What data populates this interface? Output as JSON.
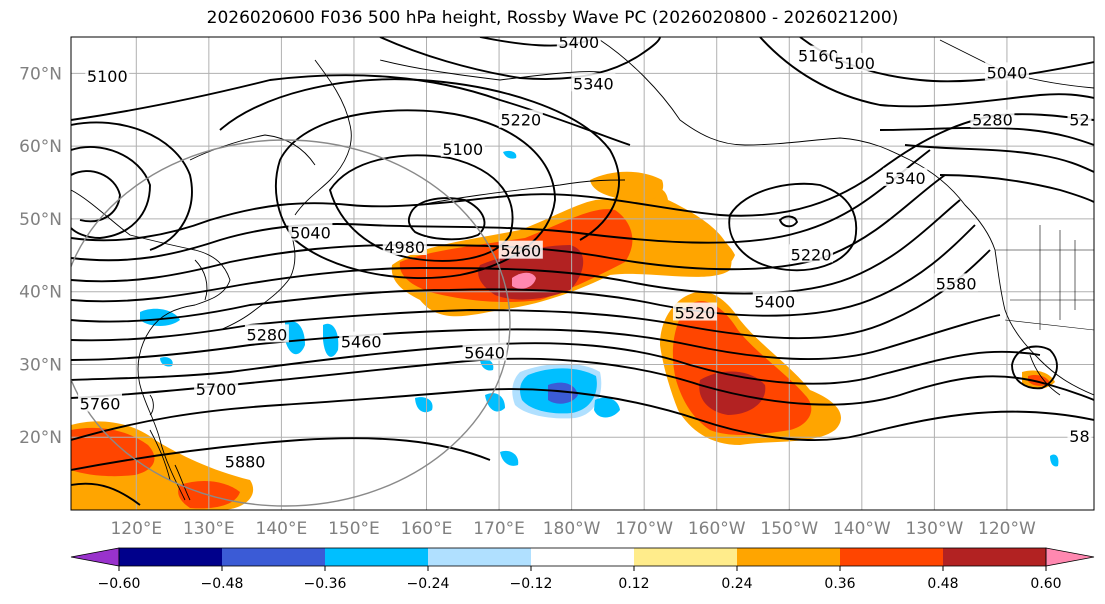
{
  "title": "2026020600 F036 500 hPa height, Rossby Wave PC (2026020800 - 2026021200)",
  "map": {
    "projection": "plate-carree",
    "lon_range": [
      111,
      252
    ],
    "lat_range": [
      10,
      75
    ],
    "lat_ticks": [
      {
        "lat": 70,
        "label": "70°N"
      },
      {
        "lat": 60,
        "label": "60°N"
      },
      {
        "lat": 50,
        "label": "50°N"
      },
      {
        "lat": 40,
        "label": "40°N"
      },
      {
        "lat": 30,
        "label": "30°N"
      },
      {
        "lat": 20,
        "label": "20°N"
      }
    ],
    "lon_ticks": [
      {
        "lon": 120,
        "label": "120°E"
      },
      {
        "lon": 130,
        "label": "130°E"
      },
      {
        "lon": 140,
        "label": "140°E"
      },
      {
        "lon": 150,
        "label": "150°E"
      },
      {
        "lon": 160,
        "label": "160°E"
      },
      {
        "lon": 170,
        "label": "170°E"
      },
      {
        "lon": 180,
        "label": "180°W"
      },
      {
        "lon": 190,
        "label": "170°W"
      },
      {
        "lon": 200,
        "label": "160°W"
      },
      {
        "lon": 210,
        "label": "150°W"
      },
      {
        "lon": 220,
        "label": "140°W"
      },
      {
        "lon": 230,
        "label": "130°W"
      },
      {
        "lon": 240,
        "label": "120°W"
      }
    ],
    "contour_labels": [
      {
        "text": "5400",
        "lon": 181,
        "lat": 74.2
      },
      {
        "text": "5340",
        "lon": 183,
        "lat": 68.5
      },
      {
        "text": "5220",
        "lon": 173,
        "lat": 63.5
      },
      {
        "text": "5100",
        "lon": 116,
        "lat": 69.5
      },
      {
        "text": "5100",
        "lon": 165,
        "lat": 59.5
      },
      {
        "text": "5160",
        "lon": 214,
        "lat": 72.3
      },
      {
        "text": "5100",
        "lon": 219,
        "lat": 71.3
      },
      {
        "text": "5040",
        "lon": 240,
        "lat": 70.0
      },
      {
        "text": "5280",
        "lon": 238,
        "lat": 63.5
      },
      {
        "text": "52",
        "lon": 250,
        "lat": 63.5
      },
      {
        "text": "5340",
        "lon": 226,
        "lat": 55.5
      },
      {
        "text": "5040",
        "lon": 144,
        "lat": 48.0
      },
      {
        "text": "4980",
        "lon": 157,
        "lat": 46.0
      },
      {
        "text": "5460",
        "lon": 173,
        "lat": 45.5
      },
      {
        "text": "5220",
        "lon": 213,
        "lat": 45.0
      },
      {
        "text": "5580",
        "lon": 233,
        "lat": 41.0
      },
      {
        "text": "5400",
        "lon": 208,
        "lat": 38.5
      },
      {
        "text": "5520",
        "lon": 197,
        "lat": 37.0
      },
      {
        "text": "5280",
        "lon": 138,
        "lat": 34.0
      },
      {
        "text": "5460",
        "lon": 151,
        "lat": 33.0
      },
      {
        "text": "5640",
        "lon": 168,
        "lat": 31.5
      },
      {
        "text": "5700",
        "lon": 131,
        "lat": 26.5
      },
      {
        "text": "5760",
        "lon": 115,
        "lat": 24.5
      },
      {
        "text": "5880",
        "lon": 135,
        "lat": 16.5
      },
      {
        "text": "58",
        "lon": 250,
        "lat": 20.0
      }
    ]
  },
  "colorbar": {
    "levels": [
      -0.6,
      -0.48,
      -0.36,
      -0.24,
      -0.12,
      0.12,
      0.24,
      0.36,
      0.48,
      0.6
    ],
    "tick_labels": [
      "−0.60",
      "−0.48",
      "−0.36",
      "−0.24",
      "−0.12",
      "0.12",
      "0.24",
      "0.36",
      "0.48",
      "0.60"
    ],
    "colors": [
      "#9932cc",
      "#00008b",
      "#3b5bd6",
      "#00bfff",
      "#b0e0ff",
      "#ffffff",
      "#ffec8b",
      "#ffa500",
      "#ff4500",
      "#b22222",
      "#ff88b0"
    ]
  }
}
